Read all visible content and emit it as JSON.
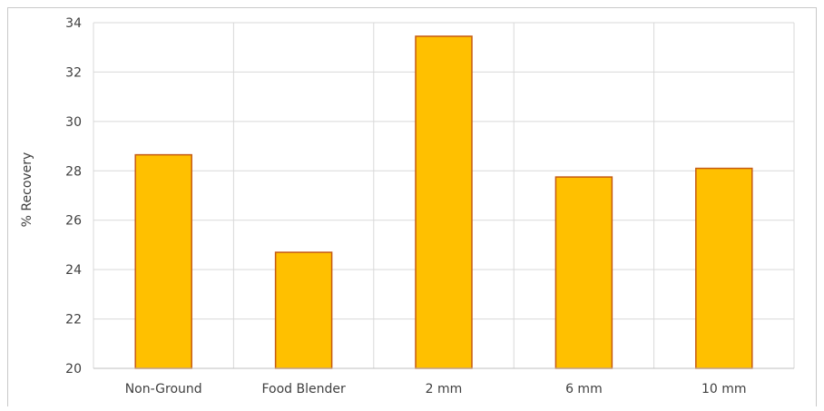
{
  "chart_data": {
    "type": "bar",
    "title": "",
    "xlabel": "",
    "ylabel": "% Recovery",
    "categories": [
      "Non-Ground",
      "Food Blender",
      "2 mm",
      "6 mm",
      "10 mm"
    ],
    "values": [
      28.65,
      24.7,
      33.45,
      27.75,
      28.1
    ],
    "ylim": [
      20,
      34
    ],
    "yticks": [
      20,
      22,
      24,
      26,
      28,
      30,
      32,
      34
    ],
    "grid": true,
    "legend": "none",
    "colors": {
      "bar_fill": "#FFC000",
      "bar_stroke": "#C55A11",
      "grid": "#d9d9d9",
      "axis": "#bfbfbf",
      "text": "#404040"
    }
  }
}
